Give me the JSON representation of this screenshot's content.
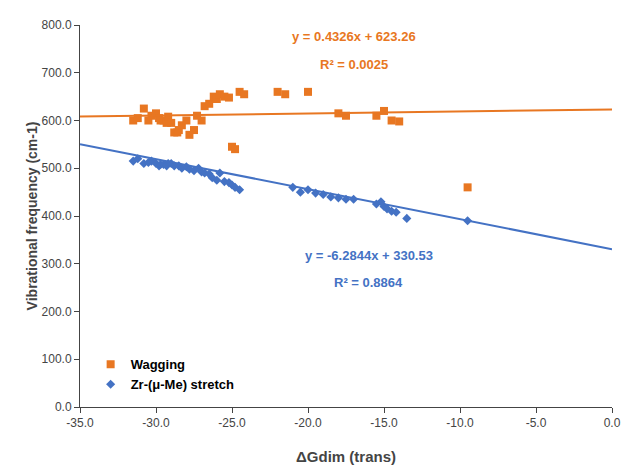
{
  "chart_data": {
    "type": "scatter",
    "xlabel": "ΔGdim (trans)",
    "ylabel": "Vibrational frequency (cm-1)",
    "xlim": [
      -35.0,
      0.0
    ],
    "ylim": [
      0.0,
      800.0
    ],
    "xticks": [
      {
        "value": -35,
        "label": "-35.0"
      },
      {
        "value": -30,
        "label": "-30.0"
      },
      {
        "value": -25,
        "label": "-25.0"
      },
      {
        "value": -20,
        "label": "-20.0"
      },
      {
        "value": -15,
        "label": "-15.0"
      },
      {
        "value": -10,
        "label": "-10.0"
      },
      {
        "value": -5,
        "label": "-5.0"
      },
      {
        "value": 0,
        "label": "0.0"
      }
    ],
    "yticks": [
      {
        "value": 0,
        "label": "0.0"
      },
      {
        "value": 100,
        "label": "100.0"
      },
      {
        "value": 200,
        "label": "200.0"
      },
      {
        "value": 300,
        "label": "300.0"
      },
      {
        "value": 400,
        "label": "400.0"
      },
      {
        "value": 500,
        "label": "500.0"
      },
      {
        "value": 600,
        "label": "600.0"
      },
      {
        "value": 700,
        "label": "700.0"
      },
      {
        "value": 800,
        "label": "800.0"
      }
    ],
    "grid": false,
    "legend": "lower left",
    "series": [
      {
        "name": "Wagging",
        "type": "scatter",
        "color": "#E87722",
        "marker": "square",
        "x": [
          -31.5,
          -31.2,
          -30.8,
          -30.5,
          -30.3,
          -30.0,
          -29.8,
          -29.7,
          -29.5,
          -29.3,
          -29.2,
          -29.0,
          -28.8,
          -28.6,
          -28.5,
          -28.3,
          -28.0,
          -27.8,
          -27.5,
          -27.3,
          -27.0,
          -26.8,
          -26.5,
          -26.2,
          -26.0,
          -25.8,
          -25.5,
          -25.2,
          -25.0,
          -24.8,
          -24.5,
          -24.2,
          -22.0,
          -21.5,
          -20.0,
          -18.0,
          -17.5,
          -15.5,
          -15.0,
          -14.5,
          -14.0,
          -9.5
        ],
        "values": [
          600,
          605,
          625,
          600,
          610,
          615,
          605,
          600,
          600,
          595,
          608,
          595,
          575,
          575,
          580,
          590,
          600,
          570,
          580,
          610,
          600,
          630,
          635,
          650,
          645,
          655,
          650,
          648,
          545,
          540,
          660,
          655,
          660,
          655,
          660,
          615,
          610,
          610,
          620,
          600,
          598,
          460
        ]
      },
      {
        "name": "Zr-(μ-Me) stretch",
        "type": "scatter",
        "color": "#4472C4",
        "marker": "diamond",
        "x": [
          -31.5,
          -31.2,
          -30.8,
          -30.5,
          -30.3,
          -30.0,
          -29.8,
          -29.7,
          -29.5,
          -29.3,
          -29.2,
          -29.0,
          -28.8,
          -28.5,
          -28.3,
          -28.0,
          -27.8,
          -27.5,
          -27.2,
          -27.0,
          -26.8,
          -26.5,
          -26.3,
          -26.0,
          -25.8,
          -25.5,
          -25.2,
          -25.0,
          -24.8,
          -24.5,
          -21.0,
          -20.5,
          -20.0,
          -19.5,
          -19.0,
          -18.5,
          -18.0,
          -17.5,
          -17.0,
          -15.5,
          -15.2,
          -15.0,
          -14.8,
          -14.5,
          -14.2,
          -13.5,
          -9.5
        ],
        "values": [
          515,
          520,
          510,
          512,
          515,
          510,
          505,
          508,
          508,
          505,
          510,
          510,
          505,
          505,
          500,
          503,
          498,
          495,
          500,
          492,
          490,
          488,
          480,
          475,
          490,
          472,
          470,
          465,
          460,
          455,
          460,
          450,
          455,
          448,
          445,
          440,
          438,
          435,
          435,
          425,
          430,
          420,
          415,
          410,
          408,
          395,
          390
        ]
      },
      {
        "type": "line",
        "color": "#E87722",
        "line_style": "solid",
        "x": [
          -35.0,
          0.0
        ],
        "values": [
          608.119,
          623.26
        ]
      },
      {
        "type": "line",
        "color": "#4472C4",
        "line_style": "solid",
        "x": [
          -35.0,
          0.0
        ],
        "values": [
          550.484,
          330.53
        ]
      }
    ],
    "annotations": [
      {
        "text": "y = 0.4326x + 623.26",
        "x": -17.0,
        "y": 755,
        "color": "#E87722"
      },
      {
        "text": "R² = 0.0025",
        "x": -17.0,
        "y": 697,
        "color": "#E87722"
      },
      {
        "text": "y = -6.2844x + 330.53",
        "x": -16.0,
        "y": 297,
        "color": "#4472C4"
      },
      {
        "text": "R² = 0.8864",
        "x": -16.0,
        "y": 240,
        "color": "#4472C4"
      }
    ]
  }
}
